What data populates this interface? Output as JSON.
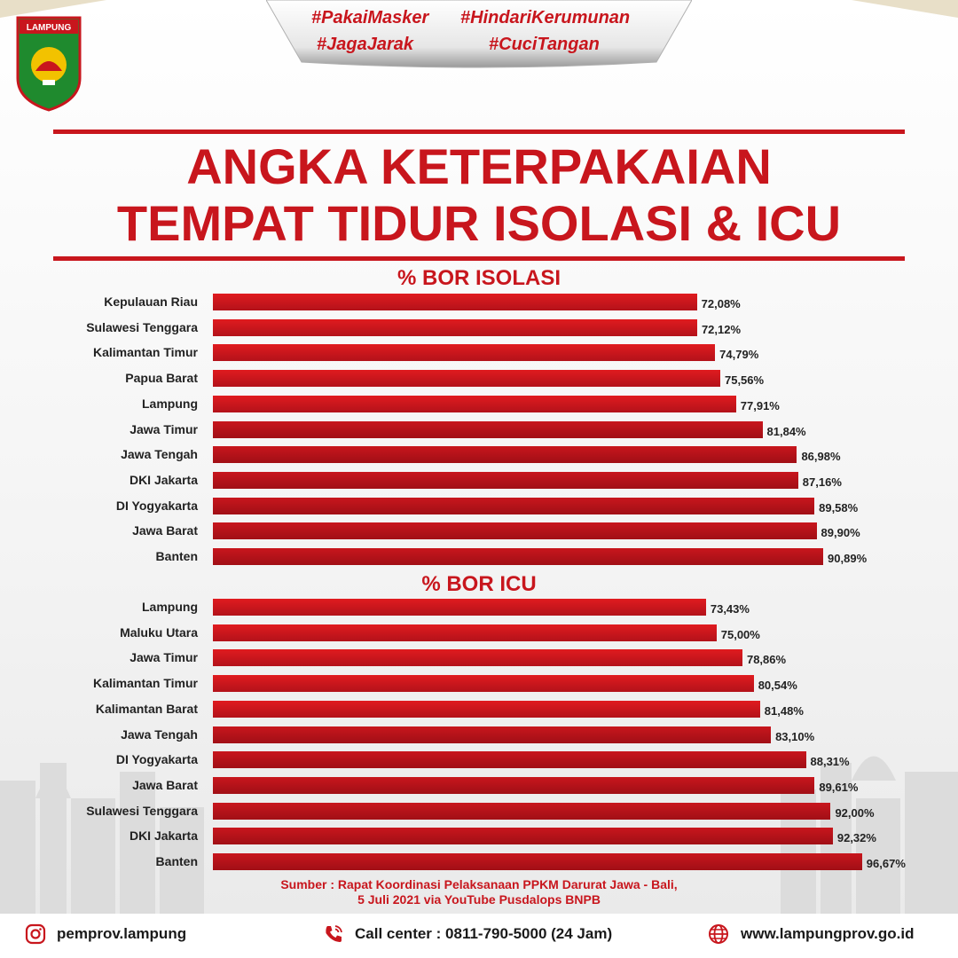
{
  "logo": {
    "text": "LAMPUNG"
  },
  "hashtags": [
    "#PakaiMasker",
    "#HindariKerumunan",
    "#JagaJarak",
    "#CuciTangan"
  ],
  "title": {
    "line1": "ANGKA KETERPAKAIAN",
    "line2": "TEMPAT TIDUR ISOLASI & ICU"
  },
  "chart_data": [
    {
      "type": "bar",
      "orientation": "horizontal",
      "title": "% BOR ISOLASI",
      "categories": [
        "Kepulauan Riau",
        "Sulawesi Tenggara",
        "Kalimantan Timur",
        "Papua Barat",
        "Lampung",
        "Jawa Timur",
        "Jawa Tengah",
        "DKI Jakarta",
        "DI Yogyakarta",
        "Jawa Barat",
        "Banten"
      ],
      "values": [
        72.08,
        72.12,
        74.79,
        75.56,
        77.91,
        81.84,
        86.98,
        87.16,
        89.58,
        89.9,
        90.89
      ],
      "labels": [
        "72,08%",
        "72,12%",
        "74,79%",
        "75,56%",
        "77,91%",
        "81,84%",
        "86,98%",
        "87,16%",
        "89,58%",
        "89,90%",
        "90,89%"
      ],
      "colors": [
        "#e01b1f",
        "#e01b1f",
        "#e01b1f",
        "#e01b1f",
        "#e01b1f",
        "#b3121a",
        "#b3121a",
        "#b3121a",
        "#b3121a",
        "#b3121a",
        "#b3121a"
      ]
    },
    {
      "type": "bar",
      "orientation": "horizontal",
      "title": "% BOR ICU",
      "categories": [
        "Lampung",
        "Maluku Utara",
        "Jawa Timur",
        "Kalimantan Timur",
        "Kalimantan Barat",
        "Jawa Tengah",
        "DI Yogyakarta",
        "Jawa Barat",
        "Sulawesi Tenggara",
        "DKI Jakarta",
        "Banten"
      ],
      "values": [
        73.43,
        75.0,
        78.86,
        80.54,
        81.48,
        83.1,
        88.31,
        89.61,
        92.0,
        92.32,
        96.67
      ],
      "labels": [
        "73,43%",
        "75,00%",
        "78,86%",
        "80,54%",
        "81,48%",
        "83,10%",
        "88,31%",
        "89,61%",
        "92,00%",
        "92,32%",
        "96,67%"
      ],
      "colors": [
        "#e01b1f",
        "#e01b1f",
        "#e01b1f",
        "#e01b1f",
        "#e01b1f",
        "#b3121a",
        "#b3121a",
        "#b3121a",
        "#b3121a",
        "#b3121a",
        "#b3121a"
      ]
    }
  ],
  "source": {
    "line1": "Sumber : Rapat Koordinasi Pelaksanaan PPKM Darurat Jawa - Bali,",
    "line2": "5 Juli 2021 via YouTube Pusdalops BNPB"
  },
  "footer": {
    "instagram": "pemprov.lampung",
    "callcenter": "Call center : 0811-790-5000 (24 Jam)",
    "website": "www.lampungprov.go.id"
  },
  "colors": {
    "accent": "#c8161d",
    "bar_light": "#e01b1f",
    "bar_dark": "#b3121a"
  }
}
